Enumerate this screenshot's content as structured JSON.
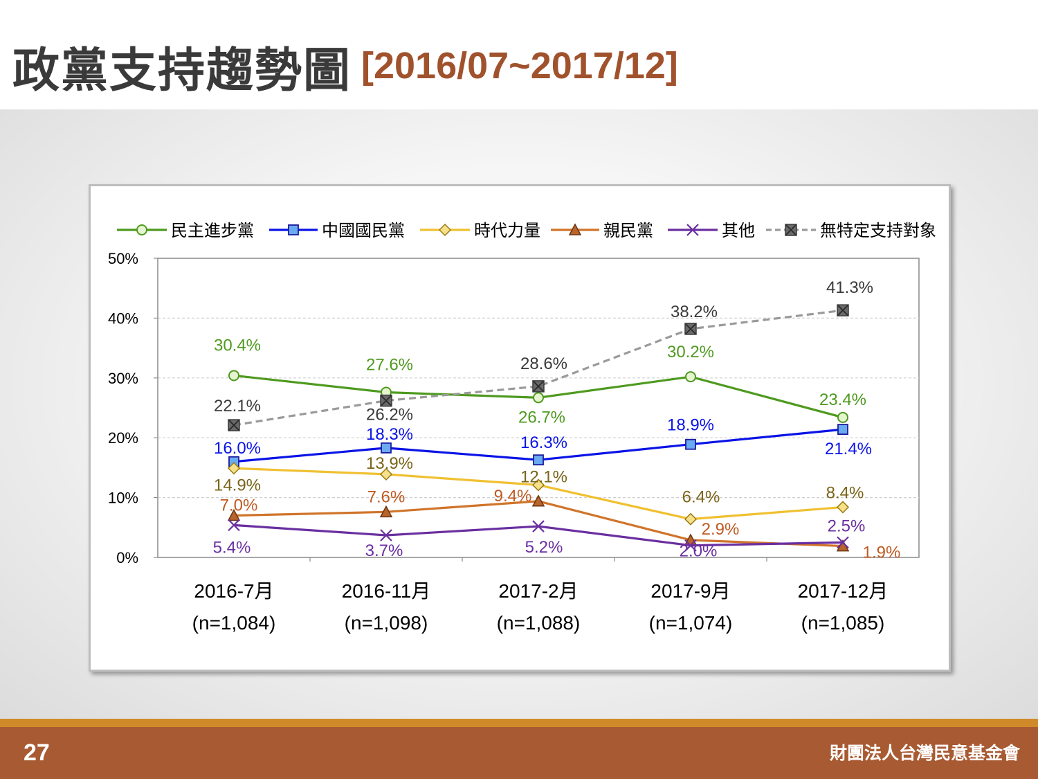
{
  "header": {
    "title": "政黨支持趨勢圖",
    "subtitle": "[2016/07~2017/12]"
  },
  "footer": {
    "page_number": "27",
    "organization": "財團法人台灣民意基金會"
  },
  "colors": {
    "dpp": "#4e9a1f",
    "kmt": "#0a14e6",
    "npp": "#f0c030",
    "pfp": "#d0742a",
    "other": "#6a2fa0",
    "none": "#9a9a9a"
  },
  "chart_data": {
    "type": "line",
    "title": "",
    "xlabel": "",
    "ylabel": "",
    "ylim": [
      0,
      50
    ],
    "y_ticks": [
      "0%",
      "10%",
      "20%",
      "30%",
      "40%",
      "50%"
    ],
    "grid": true,
    "legend_position": "top",
    "categories": [
      "2016-7月",
      "2016-11月",
      "2017-2月",
      "2017-9月",
      "2017-12月"
    ],
    "category_samples": [
      "(n=1,084)",
      "(n=1,098)",
      "(n=1,088)",
      "(n=1,074)",
      "(n=1,085)"
    ],
    "series": [
      {
        "name": "民主進步黨",
        "color": "#4e9a1f",
        "marker": "circle",
        "dashed": false,
        "values": [
          30.4,
          27.6,
          26.7,
          30.2,
          23.4
        ],
        "labels": [
          "30.4%",
          "27.6%",
          "26.7%",
          "30.2%",
          "23.4%"
        ]
      },
      {
        "name": "中國國民黨",
        "color": "#0a14e6",
        "marker": "square",
        "dashed": false,
        "values": [
          16.0,
          18.3,
          16.3,
          18.9,
          21.4
        ],
        "labels": [
          "16.0%",
          "18.3%",
          "16.3%",
          "18.9%",
          "21.4%"
        ]
      },
      {
        "name": "時代力量",
        "color": "#f0c030",
        "marker": "diamond",
        "dashed": false,
        "values": [
          14.9,
          13.9,
          12.1,
          6.4,
          8.4
        ],
        "labels": [
          "14.9%",
          "13.9%",
          "12.1%",
          "6.4%",
          "8.4%"
        ]
      },
      {
        "name": "親民黨",
        "color": "#d0742a",
        "marker": "triangle",
        "dashed": false,
        "values": [
          7.0,
          7.6,
          9.4,
          2.9,
          1.9
        ],
        "labels": [
          "7.0%",
          "7.6%",
          "9.4%",
          "2.9%",
          "1.9%"
        ]
      },
      {
        "name": "其他",
        "color": "#6a2fa0",
        "marker": "x",
        "dashed": false,
        "values": [
          5.4,
          3.7,
          5.2,
          2.0,
          2.5
        ],
        "labels": [
          "5.4%",
          "3.7%",
          "5.2%",
          "2.0%",
          "2.5%"
        ]
      },
      {
        "name": "無特定支持對象",
        "color": "#9a9a9a",
        "marker": "xsquare",
        "dashed": true,
        "values": [
          22.1,
          26.2,
          28.6,
          38.2,
          41.3
        ],
        "labels": [
          "22.1%",
          "26.2%",
          "28.6%",
          "38.2%",
          "41.3%"
        ]
      }
    ]
  }
}
